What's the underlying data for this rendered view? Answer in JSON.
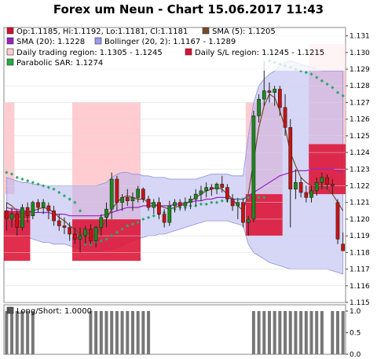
{
  "chart_data": [
    {
      "type": "candlestick",
      "title": "Forex um Neun - Chart 15.06.2017 11:43",
      "yticks": [
        1.115,
        1.116,
        1.117,
        1.118,
        1.119,
        1.12,
        1.121,
        1.122,
        1.123,
        1.124,
        1.125,
        1.126,
        1.127,
        1.128,
        1.129,
        1.13,
        1.131
      ],
      "ylim": [
        1.115,
        1.1315
      ],
      "legend": [
        {
          "label": "Op:1.1185, Hi:1.1192, Lo:1.1181, Cl:1.1181",
          "color": "#cc1133"
        },
        {
          "label": "SMA (5): 1.1205",
          "color": "#7a4a28"
        },
        {
          "label": "SMA (20): 1.1228",
          "color": "#9a20c8"
        },
        {
          "label": "Bollinger (20, 2): 1.1167 - 1.1289",
          "color": "#9999ee"
        },
        {
          "label": "Daily trading region: 1.1305 - 1.1245",
          "color": "#ffcccc"
        },
        {
          "label": "Daily S/L region: 1.1245 - 1.1215",
          "color": "#dd1133"
        },
        {
          "label": "Parabolic SAR: 1.1274",
          "color": "#22aa44"
        }
      ],
      "colors": {
        "up": "#1a8a1a",
        "down": "#cc1111",
        "sma5": "#7a4a28",
        "sma20": "#9a20c8",
        "boll": "#b4b4f0",
        "sar": "#2aa86a",
        "trading": "#ffc8cc",
        "sl": "#dd1133"
      },
      "candles": [
        [
          1.1205,
          1.121,
          1.1193,
          1.12
        ],
        [
          1.12,
          1.1207,
          1.1195,
          1.1203
        ],
        [
          1.1203,
          1.1205,
          1.119,
          1.1195
        ],
        [
          1.1195,
          1.1209,
          1.1193,
          1.1207
        ],
        [
          1.1207,
          1.121,
          1.1198,
          1.1202
        ],
        [
          1.1202,
          1.1211,
          1.12,
          1.121
        ],
        [
          1.121,
          1.1212,
          1.1204,
          1.1207
        ],
        [
          1.1207,
          1.1212,
          1.1203,
          1.121
        ],
        [
          1.1208,
          1.121,
          1.12,
          1.1205
        ],
        [
          1.1205,
          1.1208,
          1.1196,
          1.1199
        ],
        [
          1.1199,
          1.1203,
          1.1193,
          1.1196
        ],
        [
          1.1196,
          1.1201,
          1.1191,
          1.1195
        ],
        [
          1.1195,
          1.1198,
          1.1187,
          1.1191
        ],
        [
          1.1191,
          1.1195,
          1.1185,
          1.1188
        ],
        [
          1.1188,
          1.1195,
          1.118,
          1.119
        ],
        [
          1.119,
          1.1196,
          1.1185,
          1.1194
        ],
        [
          1.1194,
          1.1197,
          1.1185,
          1.1187
        ],
        [
          1.1187,
          1.1196,
          1.1183,
          1.1195
        ],
        [
          1.1195,
          1.1203,
          1.119,
          1.1201
        ],
        [
          1.1201,
          1.121,
          1.1195,
          1.1206
        ],
        [
          1.1206,
          1.1228,
          1.12,
          1.1224
        ],
        [
          1.1224,
          1.1226,
          1.1205,
          1.121
        ],
        [
          1.121,
          1.1215,
          1.1205,
          1.1213
        ],
        [
          1.1213,
          1.1218,
          1.1208,
          1.1211
        ],
        [
          1.1211,
          1.1216,
          1.1205,
          1.1213
        ],
        [
          1.1213,
          1.122,
          1.121,
          1.1218
        ],
        [
          1.1218,
          1.1219,
          1.121,
          1.1212
        ],
        [
          1.1212,
          1.1214,
          1.1205,
          1.1207
        ],
        [
          1.1207,
          1.1212,
          1.1203,
          1.121
        ],
        [
          1.121,
          1.1213,
          1.12,
          1.1203
        ],
        [
          1.1203,
          1.1206,
          1.1195,
          1.1198
        ],
        [
          1.1198,
          1.1211,
          1.1196,
          1.1208
        ],
        [
          1.1208,
          1.1212,
          1.1204,
          1.121
        ],
        [
          1.121,
          1.1212,
          1.1205,
          1.1208
        ],
        [
          1.1208,
          1.1213,
          1.1205,
          1.121
        ],
        [
          1.121,
          1.1214,
          1.1206,
          1.1212
        ],
        [
          1.1212,
          1.1218,
          1.1208,
          1.1215
        ],
        [
          1.1215,
          1.122,
          1.1211,
          1.1217
        ],
        [
          1.1217,
          1.1222,
          1.1213,
          1.1219
        ],
        [
          1.1219,
          1.1221,
          1.1214,
          1.1218
        ],
        [
          1.1218,
          1.1222,
          1.1215,
          1.1221
        ],
        [
          1.1221,
          1.1226,
          1.1216,
          1.1219
        ],
        [
          1.1219,
          1.1221,
          1.121,
          1.1212
        ],
        [
          1.1212,
          1.1215,
          1.1205,
          1.1208
        ],
        [
          1.1208,
          1.1212,
          1.12,
          1.121
        ],
        [
          1.121,
          1.1212,
          1.1195,
          1.1198
        ],
        [
          1.1198,
          1.1202,
          1.119,
          1.12
        ],
        [
          1.12,
          1.1265,
          1.1198,
          1.1262
        ],
        [
          1.1262,
          1.1275,
          1.1258,
          1.1272
        ],
        [
          1.1272,
          1.1295,
          1.1268,
          1.1277
        ],
        [
          1.1277,
          1.1282,
          1.127,
          1.1276
        ],
        [
          1.1276,
          1.128,
          1.1268,
          1.1278
        ],
        [
          1.1278,
          1.128,
          1.1262,
          1.1267
        ],
        [
          1.1267,
          1.1275,
          1.125,
          1.1255
        ],
        [
          1.1255,
          1.126,
          1.1195,
          1.1218
        ],
        [
          1.1218,
          1.123,
          1.1212,
          1.1222
        ],
        [
          1.1222,
          1.1225,
          1.1213,
          1.1216
        ],
        [
          1.1216,
          1.122,
          1.121,
          1.1213
        ],
        [
          1.1213,
          1.122,
          1.121,
          1.1217
        ],
        [
          1.1217,
          1.1225,
          1.1214,
          1.1222
        ],
        [
          1.1222,
          1.1228,
          1.1218,
          1.1225
        ],
        [
          1.1225,
          1.1227,
          1.1218,
          1.1221
        ],
        [
          1.1221,
          1.1224,
          1.1215,
          1.122
        ],
        [
          1.121,
          1.1212,
          1.1185,
          1.1188
        ],
        [
          1.1185,
          1.1192,
          1.1181,
          1.1181
        ]
      ],
      "sma5": [
        1.121,
        1.1208,
        1.1205,
        1.1203,
        1.1204,
        1.1205,
        1.1206,
        1.1207,
        1.1206,
        1.1204,
        1.1201,
        1.1199,
        1.1196,
        1.1194,
        1.1191,
        1.119,
        1.1189,
        1.1191,
        1.1195,
        1.12,
        1.1206,
        1.121,
        1.1213,
        1.1214,
        1.1213,
        1.1212,
        1.1212,
        1.121,
        1.1209,
        1.1208,
        1.1207,
        1.1206,
        1.1207,
        1.1208,
        1.1209,
        1.1211,
        1.1213,
        1.1215,
        1.1217,
        1.1218,
        1.1219,
        1.1218,
        1.1215,
        1.1212,
        1.1208,
        1.1205,
        1.1215,
        1.1235,
        1.1255,
        1.1268,
        1.1275,
        1.1273,
        1.1265,
        1.1255,
        1.124,
        1.1232,
        1.1225,
        1.1222,
        1.122,
        1.1219,
        1.122,
        1.1218,
        1.1215,
        1.121,
        1.1205
      ],
      "sma20": [
        1.1207,
        1.1206,
        1.1206,
        1.1205,
        1.1205,
        1.1204,
        1.1204,
        1.1204,
        1.1204,
        1.1203,
        1.1203,
        1.1203,
        1.1202,
        1.1202,
        1.1202,
        1.1202,
        1.1202,
        1.1202,
        1.1202,
        1.1203,
        1.1204,
        1.1205,
        1.1206,
        1.1207,
        1.1207,
        1.1207,
        1.1208,
        1.1208,
        1.1208,
        1.1208,
        1.1208,
        1.1208,
        1.1209,
        1.1209,
        1.121,
        1.121,
        1.1211,
        1.1211,
        1.1212,
        1.1212,
        1.1213,
        1.1213,
        1.1213,
        1.1212,
        1.1212,
        1.1212,
        1.1214,
        1.1216,
        1.1218,
        1.122,
        1.1222,
        1.1224,
        1.1226,
        1.1227,
        1.1228,
        1.1229,
        1.1229,
        1.1229,
        1.123,
        1.123,
        1.123,
        1.123,
        1.123,
        1.1229,
        1.1228
      ],
      "boll_upper": [
        1.1225,
        1.1224,
        1.1223,
        1.1222,
        1.1222,
        1.1221,
        1.1221,
        1.122,
        1.122,
        1.122,
        1.122,
        1.122,
        1.122,
        1.122,
        1.122,
        1.122,
        1.122,
        1.122,
        1.1221,
        1.1222,
        1.1225,
        1.1227,
        1.1228,
        1.1228,
        1.1227,
        1.1227,
        1.1226,
        1.1226,
        1.1225,
        1.1225,
        1.1225,
        1.1224,
        1.1224,
        1.1224,
        1.1224,
        1.1224,
        1.1224,
        1.1225,
        1.1226,
        1.1227,
        1.1227,
        1.1227,
        1.1227,
        1.1226,
        1.1226,
        1.1226,
        1.125,
        1.127,
        1.128,
        1.1284,
        1.1287,
        1.1289,
        1.1292,
        1.1294,
        1.1295,
        1.1294,
        1.1293,
        1.1292,
        1.1291,
        1.129,
        1.1289,
        1.1289,
        1.1289,
        1.1289,
        1.1289
      ],
      "boll_lower": [
        1.1192,
        1.1192,
        1.1191,
        1.119,
        1.1189,
        1.1188,
        1.1187,
        1.1186,
        1.1186,
        1.1185,
        1.1185,
        1.1185,
        1.1184,
        1.1183,
        1.1182,
        1.1181,
        1.1181,
        1.1181,
        1.1181,
        1.1182,
        1.1182,
        1.1183,
        1.1184,
        1.1186,
        1.1187,
        1.1188,
        1.1189,
        1.119,
        1.119,
        1.1191,
        1.1191,
        1.1192,
        1.1193,
        1.1194,
        1.1195,
        1.1196,
        1.1197,
        1.1198,
        1.1199,
        1.1199,
        1.1199,
        1.1199,
        1.1199,
        1.1198,
        1.1197,
        1.1196,
        1.1185,
        1.118,
        1.1178,
        1.1176,
        1.1174,
        1.1173,
        1.1172,
        1.1171,
        1.117,
        1.117,
        1.117,
        1.117,
        1.117,
        1.117,
        1.117,
        1.117,
        1.1169,
        1.1168,
        1.1167
      ],
      "sar": [
        1.1228,
        1.1227,
        1.1225,
        1.1224,
        1.1223,
        1.1222,
        1.1221,
        1.122,
        1.1219,
        1.1218,
        1.1216,
        1.1214,
        1.1212,
        1.121,
        1.1205,
        1.1185,
        1.1185,
        1.1186,
        1.1187,
        1.1188,
        1.119,
        1.1192,
        1.1194,
        1.1196,
        1.1197,
        1.1198,
        1.12,
        1.1201,
        1.1202,
        1.1203,
        1.1204,
        1.1205,
        1.1206,
        1.1207,
        1.1207,
        1.1208,
        1.1208,
        1.1209,
        1.1209,
        1.121,
        1.121,
        1.1211,
        1.1211,
        1.1212,
        1.1212,
        1.1212,
        1.1213,
        1.1213,
        1.1213,
        1.1213,
        1.1295,
        1.1294,
        1.1293,
        1.1292,
        1.1291,
        1.129,
        1.1289,
        1.1288,
        1.1287,
        1.1285,
        1.1283,
        1.1281,
        1.1279,
        1.1276,
        1.1274
      ],
      "trading_regions": [
        {
          "from": 0,
          "to": 1,
          "high": 1.127,
          "low": 1.1215
        },
        {
          "from": 13,
          "to": 25,
          "high": 1.127,
          "low": 1.12
        },
        {
          "from": 46,
          "to": 52,
          "high": 1.127,
          "low": 1.1215
        },
        {
          "from": 58,
          "to": 64,
          "high": 1.1305,
          "low": 1.1245
        }
      ],
      "sl_regions": [
        {
          "from": 0,
          "to": 4,
          "high": 1.1205,
          "low": 1.1175
        },
        {
          "from": 13,
          "to": 25,
          "high": 1.12,
          "low": 1.1175
        },
        {
          "from": 46,
          "to": 52,
          "high": 1.1215,
          "low": 1.119
        },
        {
          "from": 58,
          "to": 64,
          "high": 1.1245,
          "low": 1.1215
        }
      ]
    },
    {
      "type": "bar",
      "title": "",
      "legend": [
        {
          "label": "Long/Short: 1.0000",
          "color": "#555555"
        }
      ],
      "yticks": [
        0.0,
        0.5,
        1.0
      ],
      "ylim": [
        0,
        1
      ],
      "values": [
        1,
        1,
        1,
        1,
        1,
        1,
        0,
        0,
        0,
        0,
        0,
        0,
        0,
        0,
        0,
        0,
        1,
        1,
        1,
        1,
        1,
        1,
        1,
        1,
        1,
        1,
        1,
        1,
        0,
        0,
        0,
        0,
        0,
        0,
        0,
        0,
        0,
        0,
        0,
        0,
        0,
        0,
        0,
        0,
        0,
        0,
        0,
        1,
        1,
        1,
        1,
        1,
        1,
        1,
        1,
        1,
        1,
        1,
        1,
        1,
        1,
        0,
        1,
        1,
        1
      ]
    }
  ]
}
